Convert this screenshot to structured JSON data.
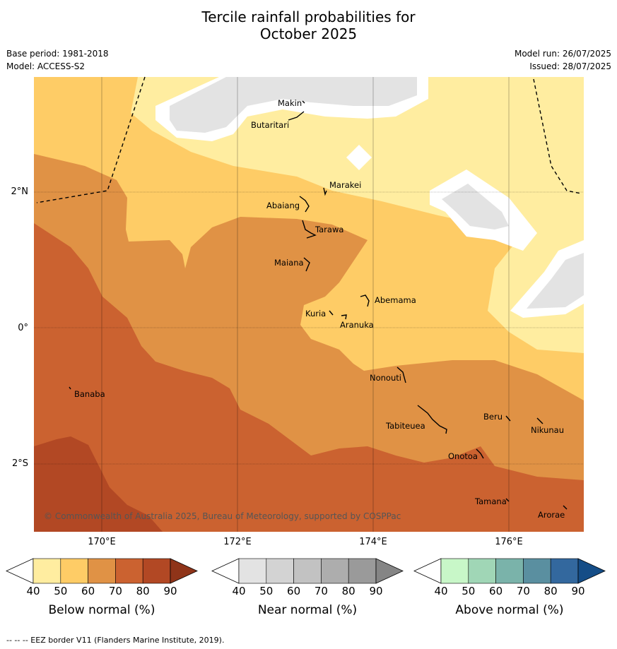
{
  "header": {
    "title_line1": "Tercile rainfall probabilities for",
    "title_line2": "October 2025",
    "base_period": "Base period: 1981-2018",
    "model": "Model: ACCESS-S2",
    "model_run": "Model run: 26/07/2025",
    "issued": "Issued: 28/07/2025"
  },
  "map": {
    "lat_labels": [
      "2°N",
      "0°",
      "2°S"
    ],
    "lon_labels": [
      "170°E",
      "172°E",
      "174°E",
      "176°E"
    ],
    "places": [
      "Makin",
      "Butaritari",
      "Marakei",
      "Abaiang",
      "Tarawa",
      "Maiana",
      "Abemama",
      "Kuria",
      "Aranuka",
      "Nonouti",
      "Banaba",
      "Tabiteuea",
      "Beru",
      "Nikunau",
      "Onotoa",
      "Tamana",
      "Arorae"
    ],
    "credit": "© Commonwealth of Australia 2025, Bureau of Meteorology, supported by COSPPac",
    "colors": {
      "below_40": "#ffeda0",
      "below_50": "#fecc66",
      "below_60": "#e09245",
      "below_70": "#cb6230",
      "below_80": "#b24824",
      "near_40": "#e3e3e3",
      "eez_border": "#000000"
    }
  },
  "colorbars": [
    {
      "label": "Below normal (%)",
      "ticks": [
        "40",
        "50",
        "60",
        "70",
        "80",
        "90"
      ],
      "colors": [
        "#ffeda0",
        "#fecc66",
        "#e09245",
        "#cb6230",
        "#b24824",
        "#8f3419"
      ]
    },
    {
      "label": "Near normal (%)",
      "ticks": [
        "40",
        "50",
        "60",
        "70",
        "80",
        "90"
      ],
      "colors": [
        "#e3e3e3",
        "#d3d3d3",
        "#c2c2c2",
        "#adadad",
        "#9a9a9a",
        "#858585"
      ]
    },
    {
      "label": "Above normal (%)",
      "ticks": [
        "40",
        "50",
        "60",
        "70",
        "80",
        "90"
      ],
      "colors": [
        "#c8f7c8",
        "#a0d6b6",
        "#7ab3aa",
        "#5a8fa0",
        "#33689e",
        "#154d87"
      ]
    }
  ],
  "footer": "--  --  -- EEZ border V11 (Flanders Marine Institute, 2019)."
}
